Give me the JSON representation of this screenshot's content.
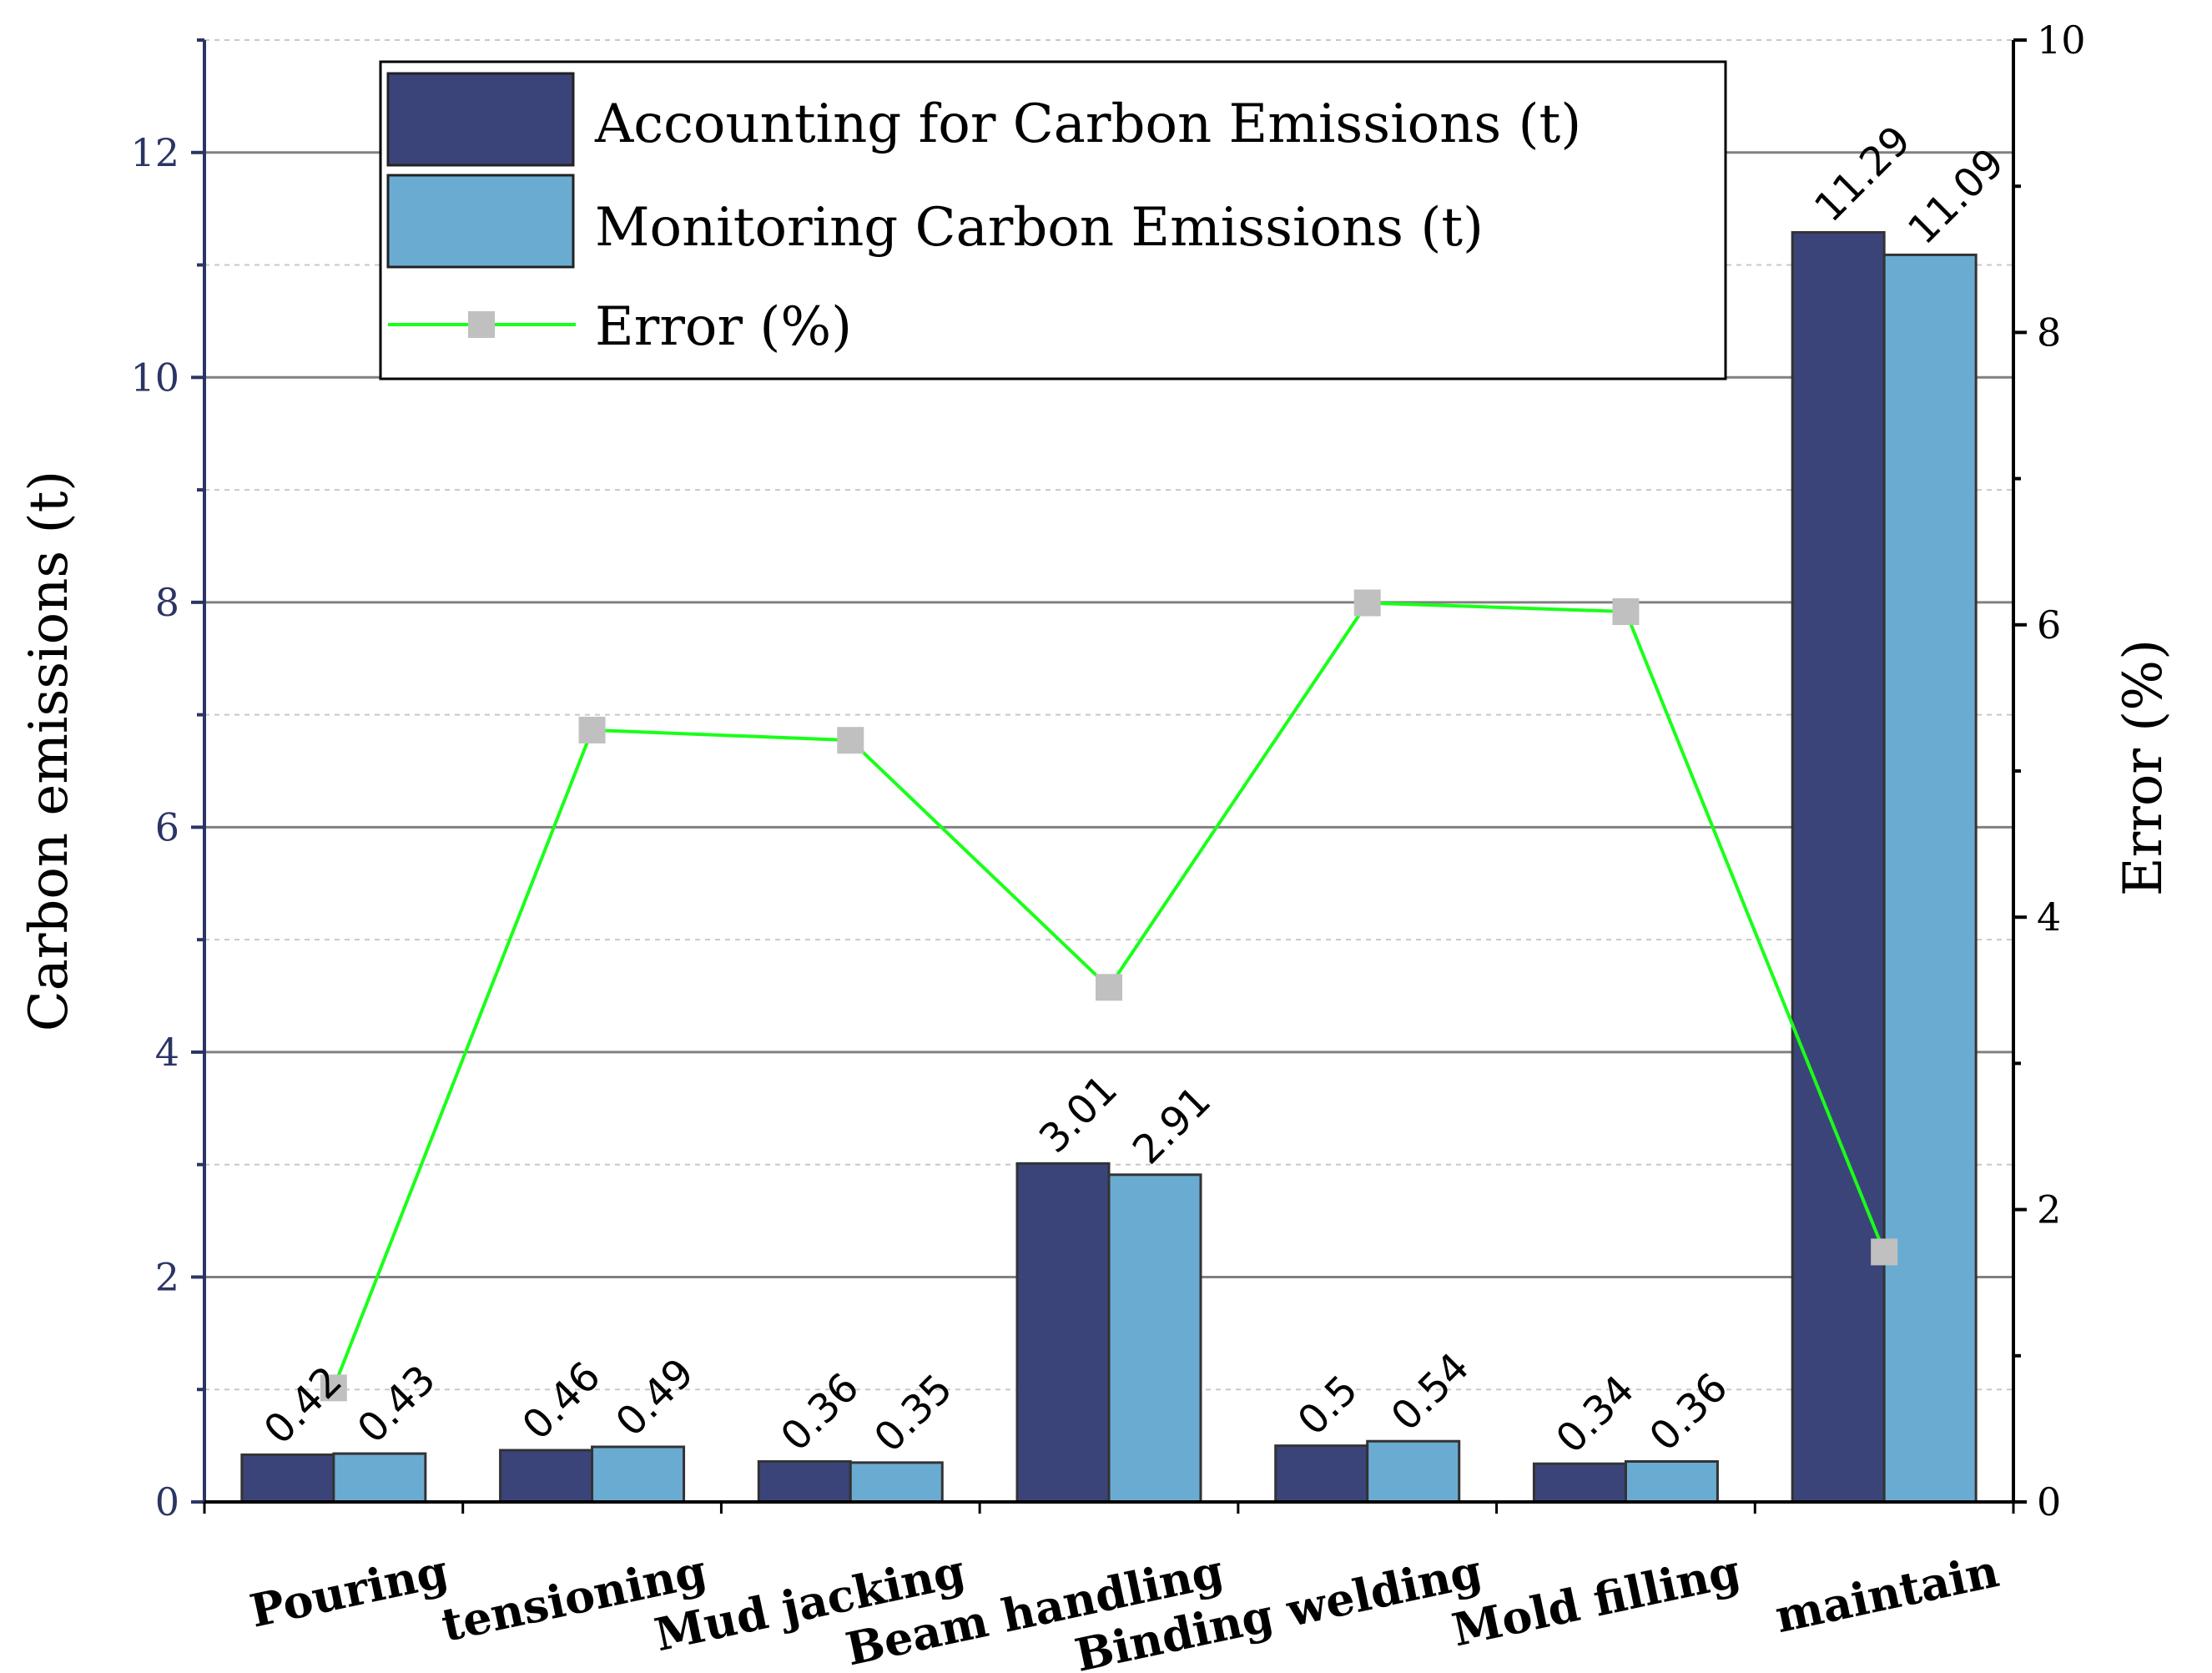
{
  "chart_data": {
    "type": "bar",
    "categories": [
      "Pouring",
      "tensioning",
      "Mud jacking",
      "Beam handling",
      "Binding welding",
      "Mold filling",
      "maintain"
    ],
    "series": [
      {
        "name": "Accounting for Carbon Emissions (t)",
        "axis": "left",
        "kind": "bar",
        "values": [
          0.42,
          0.46,
          0.36,
          3.01,
          0.5,
          0.34,
          11.29
        ]
      },
      {
        "name": "Monitoring Carbon Emissions (t)",
        "axis": "left",
        "kind": "bar",
        "values": [
          0.43,
          0.49,
          0.35,
          2.91,
          0.54,
          0.36,
          11.09
        ]
      },
      {
        "name": "Error (%)",
        "axis": "right",
        "kind": "line",
        "values": [
          0.78,
          5.28,
          5.21,
          3.52,
          6.15,
          6.09,
          1.71
        ]
      }
    ],
    "bar_labels": [
      [
        "0.42",
        "0.46",
        "0.36",
        "3.01",
        "0.5",
        "0.34",
        "11.29"
      ],
      [
        "0.43",
        "0.49",
        "0.35",
        "2.91",
        "0.54",
        "0.36",
        "11.09"
      ]
    ],
    "ylabel": "Carbon emissions (t)",
    "y2label": "Error (%)",
    "ylim": [
      0,
      13
    ],
    "y2lim": [
      0,
      10
    ],
    "yticks": [
      0,
      2,
      4,
      6,
      8,
      10,
      12
    ],
    "y2ticks": [
      0,
      2,
      4,
      6,
      8,
      10
    ],
    "grid": true,
    "legend_position": "top",
    "colors": {
      "accounting": "#3b4479",
      "monitoring": "#6aabd2",
      "error_line": "#19ff19",
      "error_marker": "#c0c0c0",
      "left_axis": "#2b3564",
      "grid_major": "#808080",
      "grid_minor": "#c8c8c8"
    }
  }
}
